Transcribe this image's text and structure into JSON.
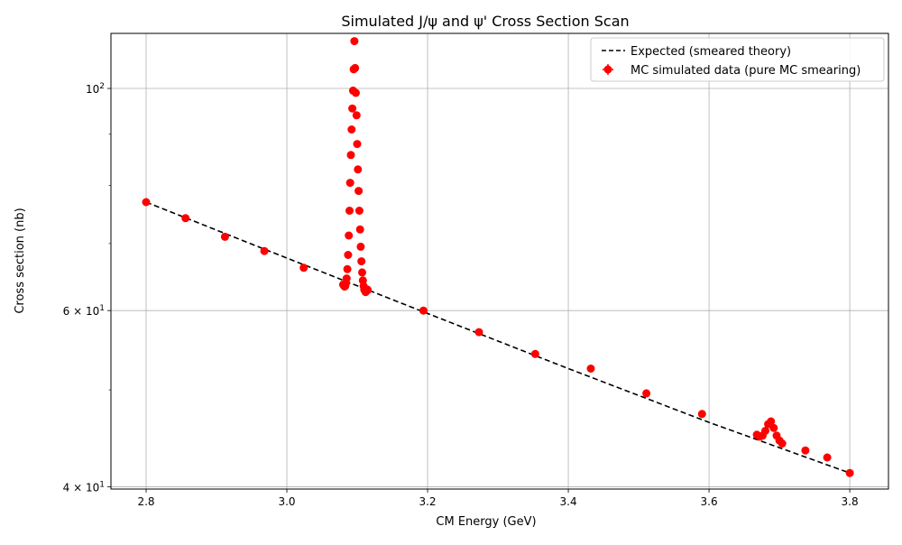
{
  "chart_data": {
    "type": "scatter",
    "title": "Simulated J/ψ and ψ' Cross Section Scan",
    "xlabel": "CM Energy (GeV)",
    "ylabel": "Cross section (nb)",
    "xlim": [
      2.75,
      3.855
    ],
    "ylim": [
      39.8,
      113.5
    ],
    "yscale": "log",
    "grid": true,
    "legend_position": "top-right",
    "x_ticks": [
      {
        "value": 2.8,
        "label": "2.8"
      },
      {
        "value": 3.0,
        "label": "3.0"
      },
      {
        "value": 3.2,
        "label": "3.2"
      },
      {
        "value": 3.4,
        "label": "3.4"
      },
      {
        "value": 3.6,
        "label": "3.6"
      },
      {
        "value": 3.8,
        "label": "3.8"
      }
    ],
    "y_major_ticks": [
      {
        "value": 40,
        "base": "4 × 10",
        "exp": "1"
      },
      {
        "value": 60,
        "base": "6 × 10",
        "exp": "1"
      },
      {
        "value": 100,
        "base": "10",
        "exp": "2"
      }
    ],
    "y_minor_ticks": [
      50,
      70,
      80,
      90
    ],
    "series": [
      {
        "name": "Expected (smeared theory)",
        "style": "dashed-line",
        "color": "#000000",
        "x": [
          2.8,
          3.0,
          3.2,
          3.4,
          3.6,
          3.8
        ],
        "y": [
          77.0,
          67.7,
          59.6,
          52.5,
          46.4,
          41.3
        ]
      },
      {
        "name": "MC simulated data (pure MC smearing)",
        "style": "markers",
        "color": "#ff0000",
        "x": [
          2.8,
          2.856,
          2.912,
          2.968,
          3.024,
          3.08,
          3.081,
          3.082,
          3.083,
          3.084,
          3.085,
          3.086,
          3.087,
          3.088,
          3.089,
          3.09,
          3.091,
          3.092,
          3.093,
          3.094,
          3.095,
          3.096,
          3.097,
          3.098,
          3.099,
          3.1,
          3.101,
          3.102,
          3.103,
          3.104,
          3.105,
          3.106,
          3.107,
          3.108,
          3.109,
          3.11,
          3.111,
          3.112,
          3.113,
          3.114,
          3.115,
          3.194,
          3.273,
          3.353,
          3.432,
          3.511,
          3.59,
          3.668,
          3.672,
          3.676,
          3.68,
          3.684,
          3.688,
          3.692,
          3.696,
          3.7,
          3.704,
          3.737,
          3.768,
          3.8
        ],
        "y": [
          77.0,
          74.2,
          71.1,
          68.8,
          66.2,
          63.7,
          63.6,
          63.4,
          63.5,
          63.9,
          64.6,
          66.0,
          68.2,
          71.3,
          75.5,
          80.5,
          85.8,
          91.0,
          95.5,
          99.5,
          104.5,
          111.5,
          104.8,
          99.0,
          94.0,
          88.0,
          83.0,
          79.0,
          75.5,
          72.3,
          69.5,
          67.2,
          65.5,
          64.3,
          63.5,
          63.0,
          62.8,
          62.6,
          62.8,
          63.0,
          62.9,
          60.0,
          57.1,
          54.3,
          52.5,
          49.6,
          47.3,
          45.1,
          44.9,
          45.0,
          45.5,
          46.2,
          46.5,
          45.8,
          45.0,
          44.5,
          44.2,
          43.5,
          42.8,
          41.3
        ]
      }
    ]
  }
}
